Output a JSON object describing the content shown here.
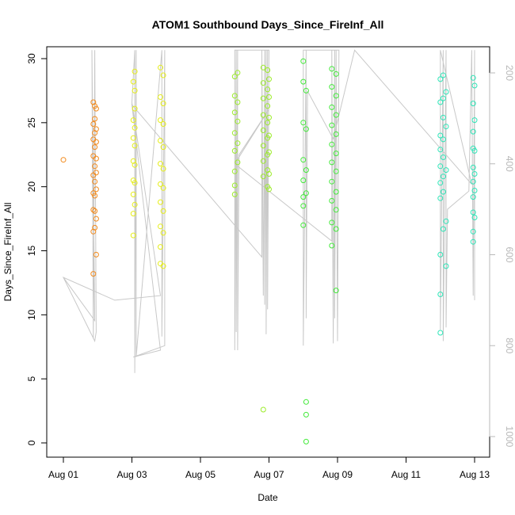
{
  "chart_data": {
    "type": "scatter",
    "title": "ATOM1 Southbound Days_Since_FireInf_All",
    "xlabel": "Date",
    "ylabel": "Days_Since_FireInf_All",
    "x_unit": "date",
    "xlim": [
      "2023-08-01",
      "2023-08-13"
    ],
    "ylim": [
      0,
      30
    ],
    "x_ticks": [
      {
        "x": "2023-08-01",
        "label": "Aug 01"
      },
      {
        "x": "2023-08-03",
        "label": "Aug 03"
      },
      {
        "x": "2023-08-05",
        "label": "Aug 05"
      },
      {
        "x": "2023-08-07",
        "label": "Aug 07"
      },
      {
        "x": "2023-08-09",
        "label": "Aug 09"
      },
      {
        "x": "2023-08-11",
        "label": "Aug 11"
      },
      {
        "x": "2023-08-13",
        "label": "Aug 13"
      }
    ],
    "y_ticks": [
      0,
      5,
      10,
      15,
      20,
      25,
      30
    ],
    "right_axis": {
      "color": "#b8b8b8",
      "reversed": true,
      "ticks": [
        200,
        400,
        600,
        800,
        1000
      ],
      "ylim": [
        1020,
        150
      ]
    },
    "grid": false,
    "legend": "none",
    "series": [
      {
        "color": "#f28a1c",
        "points": [
          [
            "2023-08-01 00:00",
            22.1
          ],
          [
            "2023-08-01 21:00",
            26.6
          ],
          [
            "2023-08-01 21:00",
            24.9
          ],
          [
            "2023-08-01 21:00",
            23.7
          ],
          [
            "2023-08-01 21:00",
            22.4
          ],
          [
            "2023-08-01 21:00",
            20.9
          ],
          [
            "2023-08-01 21:00",
            19.5
          ],
          [
            "2023-08-01 21:00",
            18.2
          ],
          [
            "2023-08-01 21:00",
            16.5
          ],
          [
            "2023-08-01 21:00",
            13.2
          ],
          [
            "2023-08-01 22:00",
            26.3
          ],
          [
            "2023-08-01 22:00",
            25.3
          ],
          [
            "2023-08-01 22:00",
            24.2
          ],
          [
            "2023-08-01 22:00",
            23.1
          ],
          [
            "2023-08-01 22:00",
            21.6
          ],
          [
            "2023-08-01 22:00",
            20.4
          ],
          [
            "2023-08-01 22:00",
            19.3
          ],
          [
            "2023-08-01 22:00",
            18.1
          ],
          [
            "2023-08-01 22:00",
            16.8
          ],
          [
            "2023-08-01 23:00",
            26.1
          ],
          [
            "2023-08-01 23:00",
            24.5
          ],
          [
            "2023-08-01 23:00",
            23.5
          ],
          [
            "2023-08-01 23:00",
            22.2
          ],
          [
            "2023-08-01 23:00",
            21.1
          ],
          [
            "2023-08-01 23:00",
            19.8
          ],
          [
            "2023-08-01 23:00",
            17.5
          ],
          [
            "2023-08-01 23:00",
            14.7
          ]
        ]
      },
      {
        "color": "#e6ee1a",
        "points": [
          [
            "2023-08-03 01:00",
            28.2
          ],
          [
            "2023-08-03 01:00",
            25.2
          ],
          [
            "2023-08-03 01:00",
            23.8
          ],
          [
            "2023-08-03 01:00",
            22.0
          ],
          [
            "2023-08-03 01:00",
            20.5
          ],
          [
            "2023-08-03 01:00",
            19.4
          ],
          [
            "2023-08-03 01:00",
            17.9
          ],
          [
            "2023-08-03 01:00",
            16.2
          ],
          [
            "2023-08-03 02:00",
            29.0
          ],
          [
            "2023-08-03 02:00",
            27.5
          ],
          [
            "2023-08-03 02:00",
            26.1
          ],
          [
            "2023-08-03 02:00",
            24.6
          ],
          [
            "2023-08-03 02:00",
            23.2
          ],
          [
            "2023-08-03 02:00",
            21.7
          ],
          [
            "2023-08-03 02:00",
            20.3
          ],
          [
            "2023-08-03 02:00",
            18.6
          ],
          [
            "2023-08-03 20:00",
            29.3
          ],
          [
            "2023-08-03 20:00",
            27.0
          ],
          [
            "2023-08-03 20:00",
            25.2
          ],
          [
            "2023-08-03 20:00",
            23.6
          ],
          [
            "2023-08-03 20:00",
            21.8
          ],
          [
            "2023-08-03 20:00",
            20.2
          ],
          [
            "2023-08-03 20:00",
            18.8
          ],
          [
            "2023-08-03 20:00",
            16.9
          ],
          [
            "2023-08-03 20:00",
            15.3
          ],
          [
            "2023-08-03 20:00",
            14.0
          ],
          [
            "2023-08-03 22:00",
            28.7
          ],
          [
            "2023-08-03 22:00",
            26.5
          ],
          [
            "2023-08-03 22:00",
            24.9
          ],
          [
            "2023-08-03 22:00",
            23.1
          ],
          [
            "2023-08-03 22:00",
            21.4
          ],
          [
            "2023-08-03 22:00",
            19.9
          ],
          [
            "2023-08-03 22:00",
            18.1
          ],
          [
            "2023-08-03 22:00",
            16.4
          ],
          [
            "2023-08-03 22:00",
            13.8
          ]
        ]
      },
      {
        "color": "#9cec2a",
        "points": [
          [
            "2023-08-06 00:00",
            28.6
          ],
          [
            "2023-08-06 00:00",
            27.1
          ],
          [
            "2023-08-06 00:00",
            25.8
          ],
          [
            "2023-08-06 00:00",
            24.2
          ],
          [
            "2023-08-06 00:00",
            22.8
          ],
          [
            "2023-08-06 00:00",
            21.2
          ],
          [
            "2023-08-06 00:00",
            20.1
          ],
          [
            "2023-08-06 00:00",
            19.4
          ],
          [
            "2023-08-06 02:00",
            28.9
          ],
          [
            "2023-08-06 02:00",
            26.6
          ],
          [
            "2023-08-06 02:00",
            25.1
          ],
          [
            "2023-08-06 02:00",
            23.4
          ],
          [
            "2023-08-06 02:00",
            21.9
          ],
          [
            "2023-08-06 20:00",
            29.3
          ],
          [
            "2023-08-06 20:00",
            28.1
          ],
          [
            "2023-08-06 20:00",
            26.9
          ],
          [
            "2023-08-06 20:00",
            25.6
          ],
          [
            "2023-08-06 20:00",
            24.4
          ],
          [
            "2023-08-06 20:00",
            23.2
          ],
          [
            "2023-08-06 20:00",
            22.0
          ],
          [
            "2023-08-06 20:00",
            20.8
          ],
          [
            "2023-08-06 20:00",
            2.6
          ],
          [
            "2023-08-06 23:00",
            29.1
          ],
          [
            "2023-08-06 23:00",
            27.6
          ],
          [
            "2023-08-06 23:00",
            26.3
          ],
          [
            "2023-08-06 23:00",
            25.0
          ],
          [
            "2023-08-06 23:00",
            23.8
          ],
          [
            "2023-08-06 23:00",
            22.5
          ],
          [
            "2023-08-06 23:00",
            21.3
          ],
          [
            "2023-08-06 23:00",
            20.0
          ],
          [
            "2023-08-07 00:00",
            28.4
          ],
          [
            "2023-08-07 00:00",
            27.0
          ],
          [
            "2023-08-07 00:00",
            25.4
          ],
          [
            "2023-08-07 00:00",
            24.0
          ],
          [
            "2023-08-07 00:00",
            22.7
          ],
          [
            "2023-08-07 00:00",
            21.0
          ],
          [
            "2023-08-07 00:00",
            19.8
          ]
        ]
      },
      {
        "color": "#43ea3a",
        "points": [
          [
            "2023-08-08 00:00",
            29.8
          ],
          [
            "2023-08-08 00:00",
            28.2
          ],
          [
            "2023-08-08 00:00",
            25.0
          ],
          [
            "2023-08-08 00:00",
            22.1
          ],
          [
            "2023-08-08 00:00",
            20.5
          ],
          [
            "2023-08-08 00:00",
            19.2
          ],
          [
            "2023-08-08 00:00",
            18.5
          ],
          [
            "2023-08-08 00:00",
            17.0
          ],
          [
            "2023-08-08 02:00",
            27.5
          ],
          [
            "2023-08-08 02:00",
            24.5
          ],
          [
            "2023-08-08 02:00",
            21.3
          ],
          [
            "2023-08-08 02:00",
            19.5
          ],
          [
            "2023-08-08 02:00",
            3.2
          ],
          [
            "2023-08-08 02:00",
            2.2
          ],
          [
            "2023-08-08 02:00",
            0.1
          ],
          [
            "2023-08-08 20:00",
            29.2
          ],
          [
            "2023-08-08 20:00",
            27.8
          ],
          [
            "2023-08-08 20:00",
            26.2
          ],
          [
            "2023-08-08 20:00",
            24.8
          ],
          [
            "2023-08-08 20:00",
            23.3
          ],
          [
            "2023-08-08 20:00",
            21.9
          ],
          [
            "2023-08-08 20:00",
            20.4
          ],
          [
            "2023-08-08 20:00",
            18.9
          ],
          [
            "2023-08-08 20:00",
            17.2
          ],
          [
            "2023-08-08 20:00",
            15.4
          ],
          [
            "2023-08-08 23:00",
            28.8
          ],
          [
            "2023-08-08 23:00",
            27.1
          ],
          [
            "2023-08-08 23:00",
            25.6
          ],
          [
            "2023-08-08 23:00",
            24.1
          ],
          [
            "2023-08-08 23:00",
            22.6
          ],
          [
            "2023-08-08 23:00",
            21.2
          ],
          [
            "2023-08-08 23:00",
            19.6
          ],
          [
            "2023-08-08 23:00",
            18.2
          ],
          [
            "2023-08-08 23:00",
            16.7
          ],
          [
            "2023-08-08 23:00",
            11.9
          ]
        ]
      },
      {
        "color": "#2de6b8",
        "points": [
          [
            "2023-08-12 00:00",
            28.4
          ],
          [
            "2023-08-12 00:00",
            26.6
          ],
          [
            "2023-08-12 00:00",
            24.0
          ],
          [
            "2023-08-12 00:00",
            22.9
          ],
          [
            "2023-08-12 00:00",
            21.6
          ],
          [
            "2023-08-12 00:00",
            20.3
          ],
          [
            "2023-08-12 00:00",
            19.1
          ],
          [
            "2023-08-12 00:00",
            14.7
          ],
          [
            "2023-08-12 00:00",
            11.6
          ],
          [
            "2023-08-12 00:00",
            8.6
          ],
          [
            "2023-08-12 02:00",
            28.7
          ],
          [
            "2023-08-12 02:00",
            26.9
          ],
          [
            "2023-08-12 02:00",
            25.4
          ],
          [
            "2023-08-12 02:00",
            23.7
          ],
          [
            "2023-08-12 02:00",
            22.3
          ],
          [
            "2023-08-12 02:00",
            20.8
          ],
          [
            "2023-08-12 02:00",
            19.6
          ],
          [
            "2023-08-12 02:00",
            16.7
          ],
          [
            "2023-08-12 04:00",
            27.4
          ],
          [
            "2023-08-12 04:00",
            24.7
          ],
          [
            "2023-08-12 04:00",
            21.3
          ],
          [
            "2023-08-12 04:00",
            17.3
          ],
          [
            "2023-08-12 04:00",
            13.8
          ],
          [
            "2023-08-12 23:00",
            28.5
          ],
          [
            "2023-08-12 23:00",
            26.5
          ],
          [
            "2023-08-12 23:00",
            24.3
          ],
          [
            "2023-08-12 23:00",
            23.0
          ],
          [
            "2023-08-12 23:00",
            21.5
          ],
          [
            "2023-08-12 23:00",
            20.4
          ],
          [
            "2023-08-12 23:00",
            19.2
          ],
          [
            "2023-08-12 23:00",
            18.0
          ],
          [
            "2023-08-12 23:00",
            16.5
          ],
          [
            "2023-08-12 23:00",
            15.7
          ],
          [
            "2023-08-13 00:00",
            27.9
          ],
          [
            "2023-08-13 00:00",
            25.2
          ],
          [
            "2023-08-13 00:00",
            22.8
          ],
          [
            "2023-08-13 00:00",
            21.0
          ],
          [
            "2023-08-13 00:00",
            19.7
          ],
          [
            "2023-08-13 00:00",
            17.6
          ]
        ]
      }
    ],
    "track": {
      "color": "#c8c8c8",
      "axis": "right",
      "points": [
        [
          "2023-08-01 00:00",
          650
        ],
        [
          "2023-08-01 22:00",
          745
        ],
        [
          "2023-08-01 20:00",
          150
        ],
        [
          "2023-08-01 21:00",
          785
        ],
        [
          "2023-08-01 22:00",
          150
        ],
        [
          "2023-08-01 23:00",
          770
        ],
        [
          "2023-08-01 22:00",
          790
        ],
        [
          "2023-08-01 00:00",
          650
        ],
        [
          "2023-08-02 12:00",
          700
        ],
        [
          "2023-08-03 20:00",
          690
        ],
        [
          "2023-08-03 00:00",
          265
        ],
        [
          "2023-08-03 02:00",
          150
        ],
        [
          "2023-08-03 02:00",
          860
        ],
        [
          "2023-08-03 03:00",
          150
        ],
        [
          "2023-08-03 03:00",
          825
        ],
        [
          "2023-08-03 21:00",
          150
        ],
        [
          "2023-08-03 21:00",
          780
        ],
        [
          "2023-08-03 23:00",
          150
        ],
        [
          "2023-08-03 23:00",
          800
        ],
        [
          "2023-08-03 01:00",
          825
        ],
        [
          "2023-08-03 20:00",
          810
        ],
        [
          "2023-08-03 00:00",
          270
        ],
        [
          "2023-08-06 19:00",
          605
        ],
        [
          "2023-08-06 19:00",
          150
        ],
        [
          "2023-08-06 20:00",
          690
        ],
        [
          "2023-08-06 21:00",
          150
        ],
        [
          "2023-08-06 21:00",
          710
        ],
        [
          "2023-08-06 22:00",
          150
        ],
        [
          "2023-08-06 22:00",
          775
        ],
        [
          "2023-08-06 23:00",
          150
        ],
        [
          "2023-08-06 23:00",
          720
        ],
        [
          "2023-08-07 00:00",
          150
        ],
        [
          "2023-08-06 00:00",
          150
        ],
        [
          "2023-08-06 00:00",
          810
        ],
        [
          "2023-08-06 01:00",
          150
        ],
        [
          "2023-08-06 01:00",
          770
        ],
        [
          "2023-08-06 02:00",
          150
        ],
        [
          "2023-08-06 02:00",
          810
        ],
        [
          "2023-08-06 03:00",
          380
        ],
        [
          "2023-08-07 00:00",
          280
        ],
        [
          "2023-08-06 00:00",
          400
        ],
        [
          "2023-08-08 20:00",
          570
        ],
        [
          "2023-08-08 20:00",
          150
        ],
        [
          "2023-08-08 21:00",
          795
        ],
        [
          "2023-08-08 22:00",
          150
        ],
        [
          "2023-08-08 22:00",
          740
        ],
        [
          "2023-08-08 23:00",
          150
        ],
        [
          "2023-08-09 00:00",
          790
        ],
        [
          "2023-08-09 01:00",
          150
        ],
        [
          "2023-08-08 00:00",
          150
        ],
        [
          "2023-08-08 00:00",
          800
        ],
        [
          "2023-08-08 02:00",
          150
        ],
        [
          "2023-08-08 02:00",
          740
        ],
        [
          "2023-08-08 03:00",
          240
        ],
        [
          "2023-08-08 21:00",
          345
        ],
        [
          "2023-08-09 12:00",
          150
        ],
        [
          "2023-08-12 22:00",
          445
        ],
        [
          "2023-08-12 00:00",
          150
        ],
        [
          "2023-08-12 00:00",
          765
        ],
        [
          "2023-08-12 02:00",
          150
        ],
        [
          "2023-08-12 02:00",
          790
        ],
        [
          "2023-08-12 04:00",
          150
        ],
        [
          "2023-08-12 04:00",
          760
        ],
        [
          "2023-08-12 05:00",
          500
        ],
        [
          "2023-08-12 20:00",
          460
        ],
        [
          "2023-08-12 22:00",
          150
        ],
        [
          "2023-08-12 23:00",
          690
        ],
        [
          "2023-08-13 00:00",
          150
        ],
        [
          "2023-08-13 00:00",
          700
        ]
      ]
    }
  }
}
